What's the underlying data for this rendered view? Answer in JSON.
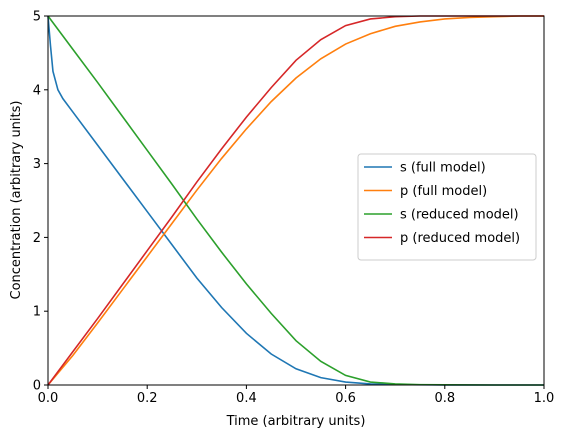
{
  "chart_data": {
    "type": "line",
    "xlabel": "Time (arbitrary units)",
    "ylabel": "Concentration (arbitrary units)",
    "xlim": [
      0,
      1
    ],
    "ylim": [
      0,
      5
    ],
    "xticks": [
      "0.0",
      "0.2",
      "0.4",
      "0.6",
      "0.8",
      "1.0"
    ],
    "yticks": [
      "0",
      "1",
      "2",
      "3",
      "4",
      "5"
    ],
    "grid": false,
    "legend_position": "center-right",
    "series": [
      {
        "name": "s (full model)",
        "color": "#1f77b4",
        "x": [
          0,
          0.005,
          0.01,
          0.02,
          0.03,
          0.05,
          0.1,
          0.15,
          0.2,
          0.25,
          0.3,
          0.35,
          0.4,
          0.45,
          0.5,
          0.55,
          0.6,
          0.65,
          0.7,
          0.8,
          0.9,
          1.0
        ],
        "y": [
          5,
          4.6,
          4.25,
          4.0,
          3.88,
          3.7,
          3.25,
          2.8,
          2.35,
          1.9,
          1.45,
          1.05,
          0.7,
          0.42,
          0.22,
          0.1,
          0.04,
          0.015,
          0.005,
          0.001,
          0.0,
          0.0
        ]
      },
      {
        "name": "p (full model)",
        "color": "#ff7f0e",
        "x": [
          0,
          0.05,
          0.1,
          0.15,
          0.2,
          0.25,
          0.3,
          0.35,
          0.4,
          0.45,
          0.5,
          0.55,
          0.6,
          0.65,
          0.7,
          0.75,
          0.8,
          0.85,
          0.9,
          0.95,
          1.0
        ],
        "y": [
          0,
          0.4,
          0.84,
          1.29,
          1.74,
          2.19,
          2.64,
          3.07,
          3.47,
          3.84,
          4.16,
          4.42,
          4.62,
          4.76,
          4.86,
          4.92,
          4.96,
          4.98,
          4.99,
          5.0,
          5.0
        ]
      },
      {
        "name": "s (reduced model)",
        "color": "#2ca02c",
        "x": [
          0,
          0.05,
          0.1,
          0.15,
          0.2,
          0.25,
          0.3,
          0.35,
          0.4,
          0.45,
          0.5,
          0.55,
          0.6,
          0.65,
          0.7,
          0.75,
          0.8,
          0.9,
          1.0
        ],
        "y": [
          5,
          4.55,
          4.1,
          3.64,
          3.18,
          2.72,
          2.25,
          1.8,
          1.37,
          0.97,
          0.6,
          0.32,
          0.13,
          0.04,
          0.015,
          0.005,
          0.002,
          0.0,
          0.0
        ]
      },
      {
        "name": "p (reduced model)",
        "color": "#d62728",
        "x": [
          0,
          0.05,
          0.1,
          0.15,
          0.2,
          0.25,
          0.3,
          0.35,
          0.4,
          0.45,
          0.5,
          0.55,
          0.6,
          0.65,
          0.7,
          0.75,
          0.8,
          0.85,
          0.9,
          1.0
        ],
        "y": [
          0,
          0.45,
          0.9,
          1.36,
          1.82,
          2.28,
          2.75,
          3.2,
          3.63,
          4.03,
          4.4,
          4.68,
          4.87,
          4.96,
          4.99,
          5.0,
          5.0,
          5.0,
          5.0,
          5.0
        ]
      }
    ]
  }
}
